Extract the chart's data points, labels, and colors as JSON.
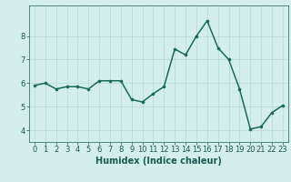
{
  "x": [
    0,
    1,
    2,
    3,
    4,
    5,
    6,
    7,
    8,
    9,
    10,
    11,
    12,
    13,
    14,
    15,
    16,
    17,
    18,
    19,
    20,
    21,
    22,
    23
  ],
  "y": [
    5.9,
    6.0,
    5.75,
    5.85,
    5.85,
    5.75,
    6.1,
    6.1,
    6.1,
    5.3,
    5.2,
    5.55,
    5.85,
    7.45,
    7.2,
    8.0,
    8.65,
    7.5,
    7.0,
    5.75,
    4.05,
    4.15,
    4.75,
    5.05
  ],
  "xlabel": "Humidex (Indice chaleur)",
  "ylim": [
    3.5,
    9.3
  ],
  "xlim": [
    -0.5,
    23.5
  ],
  "yticks": [
    4,
    5,
    6,
    7,
    8
  ],
  "xticks": [
    0,
    1,
    2,
    3,
    4,
    5,
    6,
    7,
    8,
    9,
    10,
    11,
    12,
    13,
    14,
    15,
    16,
    17,
    18,
    19,
    20,
    21,
    22,
    23
  ],
  "line_color": "#1a6b5a",
  "marker_color": "#1a6b5a",
  "bg_color": "#d4eeec",
  "grid_color": "#b5d9d6",
  "axis_color": "#3a7a6a",
  "label_color": "#1a5a50",
  "xlabel_fontsize": 7.0,
  "tick_fontsize": 6.0,
  "linewidth": 1.1,
  "markersize": 2.2
}
